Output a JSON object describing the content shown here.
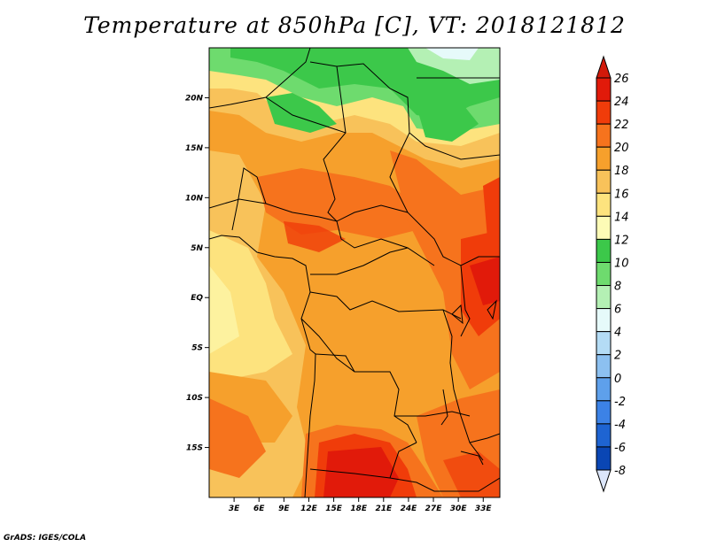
{
  "title": "Temperature at 850hPa [C], VT: 2018121812",
  "footer": "GrADS: IGES/COLA",
  "map": {
    "lon_range": [
      0,
      35
    ],
    "lat_range": [
      -20,
      25
    ],
    "lat_ticks": [
      {
        "value": 20,
        "label": "20N"
      },
      {
        "value": 15,
        "label": "15N"
      },
      {
        "value": 10,
        "label": "10N"
      },
      {
        "value": 5,
        "label": "5N"
      },
      {
        "value": 0,
        "label": "EQ"
      },
      {
        "value": -5,
        "label": "5S"
      },
      {
        "value": -10,
        "label": "10S"
      },
      {
        "value": -15,
        "label": "15S"
      }
    ],
    "lon_ticks": [
      {
        "value": 3,
        "label": "3E"
      },
      {
        "value": 6,
        "label": "6E"
      },
      {
        "value": 9,
        "label": "9E"
      },
      {
        "value": 12,
        "label": "12E"
      },
      {
        "value": 15,
        "label": "15E"
      },
      {
        "value": 18,
        "label": "18E"
      },
      {
        "value": 21,
        "label": "21E"
      },
      {
        "value": 24,
        "label": "24E"
      },
      {
        "value": 27,
        "label": "27E"
      },
      {
        "value": 30,
        "label": "30E"
      },
      {
        "value": 33,
        "label": "33E"
      }
    ]
  },
  "colorbar": {
    "levels": [
      {
        "label": "26",
        "color": "#e11a0a"
      },
      {
        "label": "24",
        "color": "#f03c0a"
      },
      {
        "label": "22",
        "color": "#f6731d"
      },
      {
        "label": "20",
        "color": "#f6a02c"
      },
      {
        "label": "18",
        "color": "#f8c25a"
      },
      {
        "label": "16",
        "color": "#fde37e"
      },
      {
        "label": "14",
        "color": "#fdfbb6"
      },
      {
        "label": "12",
        "color": "#3cc84a"
      },
      {
        "label": "10",
        "color": "#6edb6e"
      },
      {
        "label": "8",
        "color": "#b4f0b4"
      },
      {
        "label": "6",
        "color": "#e6fafa"
      },
      {
        "label": "4",
        "color": "#b4dcf5"
      },
      {
        "label": "2",
        "color": "#8cc0f0"
      },
      {
        "label": "0",
        "color": "#5ea0eb"
      },
      {
        "label": "-2",
        "color": "#3c82e6"
      },
      {
        "label": "-4",
        "color": "#1e64d2"
      },
      {
        "label": "-6",
        "color": "#0a46b4"
      },
      {
        "label": "-8",
        "color": "#0a1e78"
      }
    ],
    "top_color": "#d2190a",
    "bottom_color": "#dce6fa"
  }
}
